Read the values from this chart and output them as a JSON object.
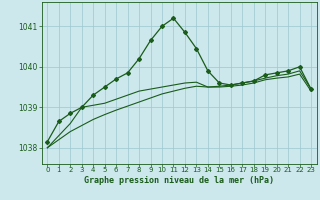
{
  "title": "Graphe pression niveau de la mer (hPa)",
  "background_color": "#cce8ec",
  "grid_color": "#9dc8d0",
  "line_color": "#1a5c1a",
  "xlim": [
    -0.5,
    23.5
  ],
  "ylim": [
    1037.6,
    1041.6
  ],
  "yticks": [
    1038,
    1039,
    1040,
    1041
  ],
  "xticks": [
    0,
    1,
    2,
    3,
    4,
    5,
    6,
    7,
    8,
    9,
    10,
    11,
    12,
    13,
    14,
    15,
    16,
    17,
    18,
    19,
    20,
    21,
    22,
    23
  ],
  "series1_x": [
    0,
    1,
    2,
    3,
    4,
    5,
    6,
    7,
    8,
    9,
    10,
    11,
    12,
    13,
    14,
    15,
    16,
    17,
    18,
    19,
    20,
    21,
    22,
    23
  ],
  "series1_y": [
    1038.15,
    1038.65,
    1038.85,
    1039.0,
    1039.3,
    1039.5,
    1039.7,
    1039.85,
    1040.2,
    1040.65,
    1041.0,
    1041.2,
    1040.85,
    1040.45,
    1039.9,
    1039.6,
    1039.55,
    1039.6,
    1039.65,
    1039.8,
    1039.85,
    1039.9,
    1040.0,
    1039.45
  ],
  "series2_x": [
    0,
    1,
    2,
    3,
    4,
    5,
    6,
    7,
    8,
    9,
    10,
    11,
    12,
    13,
    14,
    15,
    16,
    17,
    18,
    19,
    20,
    21,
    22,
    23
  ],
  "series2_y": [
    1038.0,
    1038.3,
    1038.6,
    1039.0,
    1039.05,
    1039.1,
    1039.2,
    1039.3,
    1039.4,
    1039.45,
    1039.5,
    1039.55,
    1039.6,
    1039.62,
    1039.5,
    1039.52,
    1039.55,
    1039.6,
    1039.65,
    1039.72,
    1039.78,
    1039.82,
    1039.9,
    1039.45
  ],
  "series3_x": [
    0,
    1,
    2,
    3,
    4,
    5,
    6,
    7,
    8,
    9,
    10,
    11,
    12,
    13,
    14,
    15,
    16,
    17,
    18,
    19,
    20,
    21,
    22,
    23
  ],
  "series3_y": [
    1038.0,
    1038.2,
    1038.4,
    1038.55,
    1038.7,
    1038.82,
    1038.93,
    1039.03,
    1039.13,
    1039.23,
    1039.33,
    1039.4,
    1039.47,
    1039.52,
    1039.5,
    1039.5,
    1039.52,
    1039.55,
    1039.6,
    1039.68,
    1039.72,
    1039.75,
    1039.82,
    1039.4
  ]
}
